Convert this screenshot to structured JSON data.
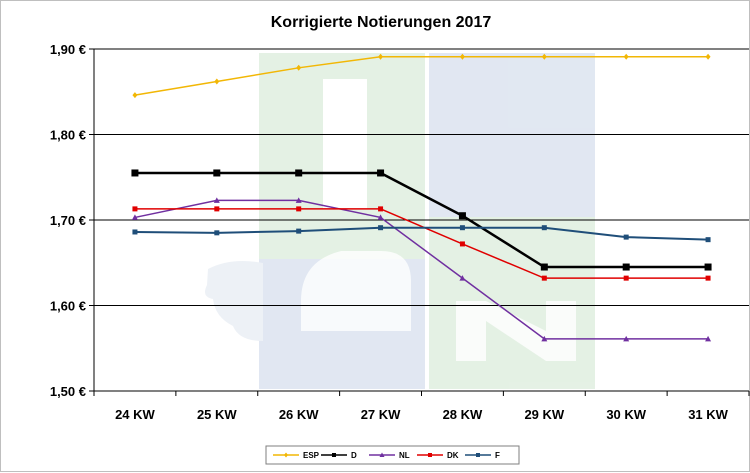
{
  "chart_data": {
    "type": "line",
    "title": "Korrigierte Notierungen 2017",
    "categories": [
      "24 KW",
      "25 KW",
      "26 KW",
      "27 KW",
      "28 KW",
      "29 KW",
      "30 KW",
      "31 KW"
    ],
    "ylim": [
      1.5,
      1.9
    ],
    "yticks": [
      {
        "value": 1.9,
        "label": "1,90 €"
      },
      {
        "value": 1.8,
        "label": "1,80 €"
      },
      {
        "value": 1.7,
        "label": "1,70 €"
      },
      {
        "value": 1.6,
        "label": "1,60 €"
      },
      {
        "value": 1.5,
        "label": "1,50 €"
      }
    ],
    "grid": true,
    "legend_position": "bottom",
    "series": [
      {
        "name": "ESP",
        "color": "#f2b705",
        "marker": "diamond",
        "values": [
          1.846,
          1.862,
          1.878,
          1.891,
          1.891,
          1.891,
          1.891,
          1.891
        ]
      },
      {
        "name": "D",
        "color": "#000000",
        "marker": "square",
        "values": [
          1.755,
          1.755,
          1.755,
          1.755,
          1.705,
          1.645,
          1.645,
          1.645
        ]
      },
      {
        "name": "NL",
        "color": "#7030a0",
        "marker": "triangle",
        "values": [
          1.703,
          1.723,
          1.723,
          1.703,
          1.632,
          1.561,
          1.561,
          1.561
        ]
      },
      {
        "name": "DK",
        "color": "#e00000",
        "marker": "square",
        "values": [
          1.713,
          1.713,
          1.713,
          1.713,
          1.672,
          1.632,
          1.632,
          1.632
        ]
      },
      {
        "name": "F",
        "color": "#1f4e79",
        "marker": "square",
        "values": [
          1.686,
          1.685,
          1.687,
          1.691,
          1.691,
          1.691,
          1.68,
          1.677
        ]
      }
    ]
  }
}
